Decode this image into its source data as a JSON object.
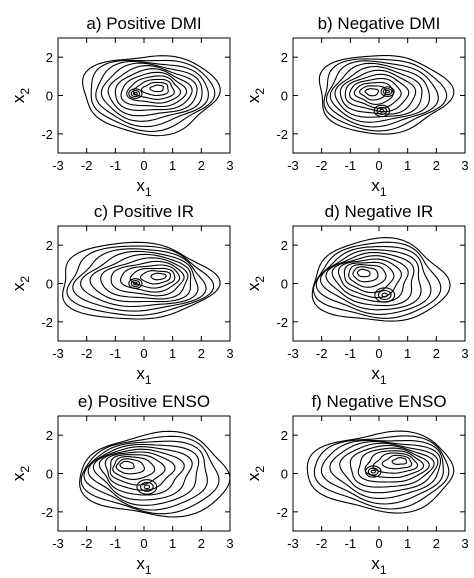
{
  "chart_data": [
    {
      "type": "contour",
      "title": "a) Positive DMI",
      "xlabel": "x",
      "xlabel_sub": "1",
      "ylabel": "x",
      "ylabel_sub": "2",
      "xlim": [
        -3,
        3
      ],
      "ylim": [
        -3,
        3
      ],
      "xticks": [
        -3,
        -2,
        -1,
        0,
        1,
        2,
        3
      ],
      "yticks": [
        -2,
        0,
        2
      ],
      "grid": false,
      "contour_levels": 11,
      "contour_color": "#000000",
      "centers": [
        {
          "x": 0.5,
          "y": 0.4,
          "w": 1.0
        },
        {
          "x": -0.3,
          "y": 0.1,
          "w": 0.6
        }
      ],
      "outer": {
        "cx": 0.2,
        "cy": 0.1,
        "rx": 2.35,
        "ry": 2.05
      }
    },
    {
      "type": "contour",
      "title": "b) Negative DMI",
      "xlabel": "x",
      "xlabel_sub": "1",
      "ylabel": "x",
      "ylabel_sub": "2",
      "xlim": [
        -3,
        3
      ],
      "ylim": [
        -3,
        3
      ],
      "xticks": [
        -3,
        -2,
        -1,
        0,
        1,
        2,
        3
      ],
      "yticks": [
        -2,
        0,
        2
      ],
      "grid": false,
      "contour_levels": 11,
      "contour_color": "#000000",
      "centers": [
        {
          "x": -0.3,
          "y": 0.2,
          "w": 1.0
        },
        {
          "x": 0.1,
          "y": -0.8,
          "w": 0.7
        },
        {
          "x": 0.3,
          "y": 0.2,
          "w": 0.6
        }
      ],
      "outer": {
        "cx": 0.1,
        "cy": 0.1,
        "rx": 2.3,
        "ry": 2.05
      }
    },
    {
      "type": "contour",
      "title": "c) Positive IR",
      "xlabel": "x",
      "xlabel_sub": "1",
      "ylabel": "x",
      "ylabel_sub": "2",
      "xlim": [
        -3,
        3
      ],
      "ylim": [
        -3,
        3
      ],
      "xticks": [
        -3,
        -2,
        -1,
        0,
        1,
        2,
        3
      ],
      "yticks": [
        -2,
        0,
        2
      ],
      "grid": false,
      "contour_levels": 11,
      "contour_color": "#000000",
      "centers": [
        {
          "x": 0.6,
          "y": 0.4,
          "w": 1.0
        },
        {
          "x": -0.3,
          "y": 0.0,
          "w": 0.6
        }
      ],
      "outer": {
        "cx": -0.3,
        "cy": 0.1,
        "rx": 2.7,
        "ry": 2.0
      }
    },
    {
      "type": "contour",
      "title": "d) Negative IR",
      "xlabel": "x",
      "xlabel_sub": "1",
      "ylabel": "x",
      "ylabel_sub": "2",
      "xlim": [
        -3,
        3
      ],
      "ylim": [
        -3,
        3
      ],
      "xticks": [
        -3,
        -2,
        -1,
        0,
        1,
        2,
        3
      ],
      "yticks": [
        -2,
        0,
        2
      ],
      "grid": false,
      "contour_levels": 11,
      "contour_color": "#000000",
      "centers": [
        {
          "x": -0.6,
          "y": 0.6,
          "w": 1.0
        },
        {
          "x": 0.2,
          "y": -0.6,
          "w": 0.9
        }
      ],
      "outer": {
        "cx": 0.0,
        "cy": 0.1,
        "rx": 2.35,
        "ry": 2.15
      }
    },
    {
      "type": "contour",
      "title": "e) Positive ENSO",
      "xlabel": "x",
      "xlabel_sub": "1",
      "ylabel": "x",
      "ylabel_sub": "2",
      "xlim": [
        -3,
        3
      ],
      "ylim": [
        -3,
        3
      ],
      "xticks": [
        -3,
        -2,
        -1,
        0,
        1,
        2,
        3
      ],
      "yticks": [
        -2,
        0,
        2
      ],
      "grid": false,
      "contour_levels": 11,
      "contour_color": "#000000",
      "centers": [
        {
          "x": -0.7,
          "y": 0.5,
          "w": 1.0
        },
        {
          "x": 0.1,
          "y": -0.7,
          "w": 0.9
        }
      ],
      "outer": {
        "cx": 0.4,
        "cy": -0.1,
        "rx": 2.6,
        "ry": 2.15
      }
    },
    {
      "type": "contour",
      "title": "f) Negative ENSO",
      "xlabel": "x",
      "xlabel_sub": "1",
      "ylabel": "x",
      "ylabel_sub": "2",
      "xlim": [
        -3,
        3
      ],
      "ylim": [
        -3,
        3
      ],
      "xticks": [
        -3,
        -2,
        -1,
        0,
        1,
        2,
        3
      ],
      "yticks": [
        -2,
        0,
        2
      ],
      "grid": false,
      "contour_levels": 11,
      "contour_color": "#000000",
      "centers": [
        {
          "x": 0.8,
          "y": 0.7,
          "w": 1.0
        },
        {
          "x": -0.2,
          "y": 0.1,
          "w": 0.7
        }
      ],
      "outer": {
        "cx": 0.1,
        "cy": 0.1,
        "rx": 2.55,
        "ry": 2.05
      }
    }
  ]
}
